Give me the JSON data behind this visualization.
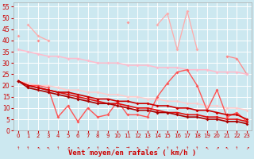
{
  "x": [
    0,
    1,
    2,
    3,
    4,
    5,
    6,
    7,
    8,
    9,
    10,
    11,
    12,
    13,
    14,
    15,
    16,
    17,
    18,
    19,
    20,
    21,
    22,
    23
  ],
  "series": [
    {
      "name": "rafales_light1",
      "color": "#ffaaaa",
      "alpha": 1.0,
      "lw": 0.9,
      "marker": "D",
      "markersize": 2.0,
      "y": [
        null,
        47,
        42,
        40,
        null,
        null,
        null,
        null,
        null,
        null,
        null,
        null,
        null,
        null,
        47,
        52,
        36,
        53,
        36,
        null,
        null,
        null,
        null,
        null
      ]
    },
    {
      "name": "rafales_medium",
      "color": "#ff8888",
      "alpha": 1.0,
      "lw": 0.9,
      "marker": "D",
      "markersize": 2.0,
      "y": [
        null,
        null,
        40,
        null,
        null,
        null,
        null,
        null,
        null,
        null,
        null,
        null,
        null,
        null,
        null,
        null,
        null,
        null,
        null,
        null,
        null,
        33,
        32,
        25
      ]
    },
    {
      "name": "trend_upper",
      "color": "#ffbbcc",
      "alpha": 1.0,
      "lw": 1.1,
      "marker": "D",
      "markersize": 2.0,
      "y": [
        36,
        35,
        34,
        33,
        33,
        32,
        32,
        31,
        30,
        30,
        30,
        29,
        29,
        29,
        28,
        28,
        28,
        27,
        27,
        27,
        26,
        26,
        26,
        25
      ]
    },
    {
      "name": "trend_lower",
      "color": "#ffcccc",
      "alpha": 1.0,
      "lw": 1.1,
      "marker": "D",
      "markersize": 2.0,
      "y": [
        22,
        21,
        20,
        20,
        19,
        18,
        18,
        17,
        17,
        16,
        16,
        15,
        15,
        14,
        14,
        13,
        13,
        12,
        12,
        11,
        11,
        10,
        10,
        9
      ]
    },
    {
      "name": "spike_series",
      "color": "#ff9999",
      "alpha": 1.0,
      "lw": 0.9,
      "marker": "D",
      "markersize": 2.0,
      "y": [
        42,
        null,
        null,
        null,
        null,
        null,
        null,
        null,
        null,
        null,
        null,
        48,
        null,
        null,
        null,
        null,
        null,
        null,
        null,
        null,
        null,
        null,
        null,
        null
      ]
    },
    {
      "name": "moyen_volatile",
      "color": "#ff5555",
      "alpha": 1.0,
      "lw": 1.0,
      "marker": "D",
      "markersize": 2.0,
      "y": [
        22,
        20,
        20,
        19,
        6,
        11,
        4,
        10,
        6,
        7,
        13,
        7,
        7,
        6,
        15,
        21,
        26,
        27,
        20,
        9,
        18,
        6,
        8,
        4
      ]
    },
    {
      "name": "moyen_trend1",
      "color": "#dd1111",
      "alpha": 1.0,
      "lw": 1.2,
      "marker": "D",
      "markersize": 2.0,
      "y": [
        22,
        20,
        19,
        18,
        17,
        16,
        15,
        14,
        13,
        12,
        12,
        11,
        10,
        10,
        9,
        8,
        8,
        7,
        7,
        6,
        6,
        5,
        5,
        4
      ]
    },
    {
      "name": "moyen_trend2",
      "color": "#cc0000",
      "alpha": 1.0,
      "lw": 1.2,
      "marker": "D",
      "markersize": 2.0,
      "y": [
        22,
        20,
        19,
        18,
        17,
        17,
        16,
        15,
        14,
        14,
        13,
        13,
        12,
        12,
        11,
        11,
        10,
        10,
        9,
        9,
        8,
        7,
        7,
        5
      ]
    },
    {
      "name": "moyen_trend3",
      "color": "#aa0000",
      "alpha": 1.0,
      "lw": 1.2,
      "marker": "D",
      "markersize": 2.0,
      "y": [
        22,
        19,
        18,
        17,
        16,
        15,
        14,
        13,
        12,
        12,
        11,
        10,
        9,
        9,
        8,
        8,
        7,
        6,
        6,
        5,
        5,
        4,
        4,
        3
      ]
    }
  ],
  "wind_arrows": "↑↑↖↖↑↗↖↗↑↖←→↖↑↗↑↑↑↑↖↗↖↑↗",
  "xlabel": "Vent moyen/en rafales ( km/h )",
  "ylim": [
    0,
    57
  ],
  "xlim": [
    -0.5,
    23.5
  ],
  "yticks": [
    0,
    5,
    10,
    15,
    20,
    25,
    30,
    35,
    40,
    45,
    50,
    55
  ],
  "xticks": [
    0,
    1,
    2,
    3,
    4,
    5,
    6,
    7,
    8,
    9,
    10,
    11,
    12,
    13,
    14,
    15,
    16,
    17,
    18,
    19,
    20,
    21,
    22,
    23
  ],
  "bg_color": "#cce8f0",
  "grid_color": "#ffffff",
  "text_color": "#cc0000",
  "label_fontsize": 6.5,
  "tick_fontsize": 5.5
}
